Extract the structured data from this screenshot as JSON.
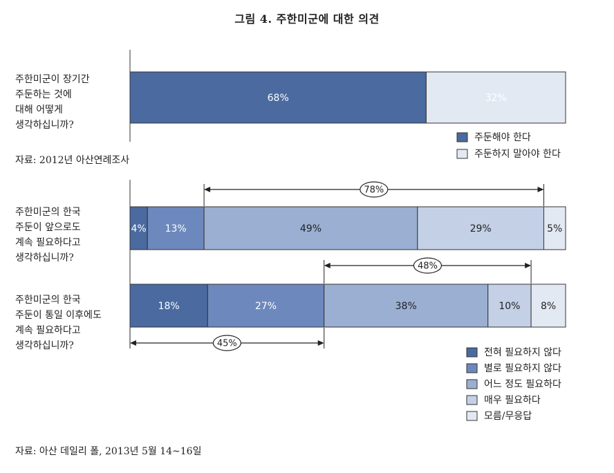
{
  "title": "그림 4. 주한미군에 대한 의견",
  "source1": "자료: 2012년 아산연례조사",
  "source2": "자료: 아산 데일리 폴, 2013년 5월 14~16일",
  "colors": {
    "c1": "#4a6aa0",
    "c2": "#6d88bd",
    "c3": "#9aafd2",
    "c4": "#c3d0e6",
    "c5": "#e3e9f3",
    "border": "#333333"
  },
  "chart_data": [
    {
      "type": "bar",
      "orientation": "horizontal-stacked",
      "question": "주한미군이 장기간\n주둔하는 것에\n대해 어떻게\n생각하십니까?",
      "series": [
        {
          "name": "주둔해야 한다",
          "value": 68,
          "label": "68%",
          "color": "c1"
        },
        {
          "name": "주둔하지 말아야 한다",
          "value": 32,
          "label": "32%",
          "color": "c5"
        }
      ],
      "legend": [
        "주둔해야 한다",
        "주둔하지 말아야 한다"
      ]
    },
    {
      "type": "bar",
      "orientation": "horizontal-stacked",
      "legend": [
        "전혀 필요하지 않다",
        "별로 필요하지 않다",
        "어느 정도 필요하다",
        "매우 필요하다",
        "모름/무응답"
      ],
      "rows": [
        {
          "question": "주한미군의 한국\n주둔이 앞으로도\n계속 필요하다고\n생각하십니까?",
          "values": [
            4,
            13,
            49,
            29,
            5
          ],
          "labels": [
            "4%",
            "13%",
            "49%",
            "29%",
            "5%"
          ],
          "bracket": {
            "label": "78%",
            "from": 2,
            "to": 3,
            "position": "above"
          }
        },
        {
          "question": "주한미군의 한국\n주둔이 통일 이후에도\n계속 필요하다고\n생각하십니까?",
          "values": [
            18,
            27,
            38,
            10,
            8
          ],
          "labels": [
            "18%",
            "27%",
            "38%",
            "10%",
            "8%"
          ],
          "bracket": {
            "label": "48%",
            "from": 2,
            "to": 3,
            "position": "above"
          },
          "bracket2": {
            "label": "45%",
            "from": 0,
            "to": 1,
            "position": "below"
          }
        }
      ]
    }
  ]
}
